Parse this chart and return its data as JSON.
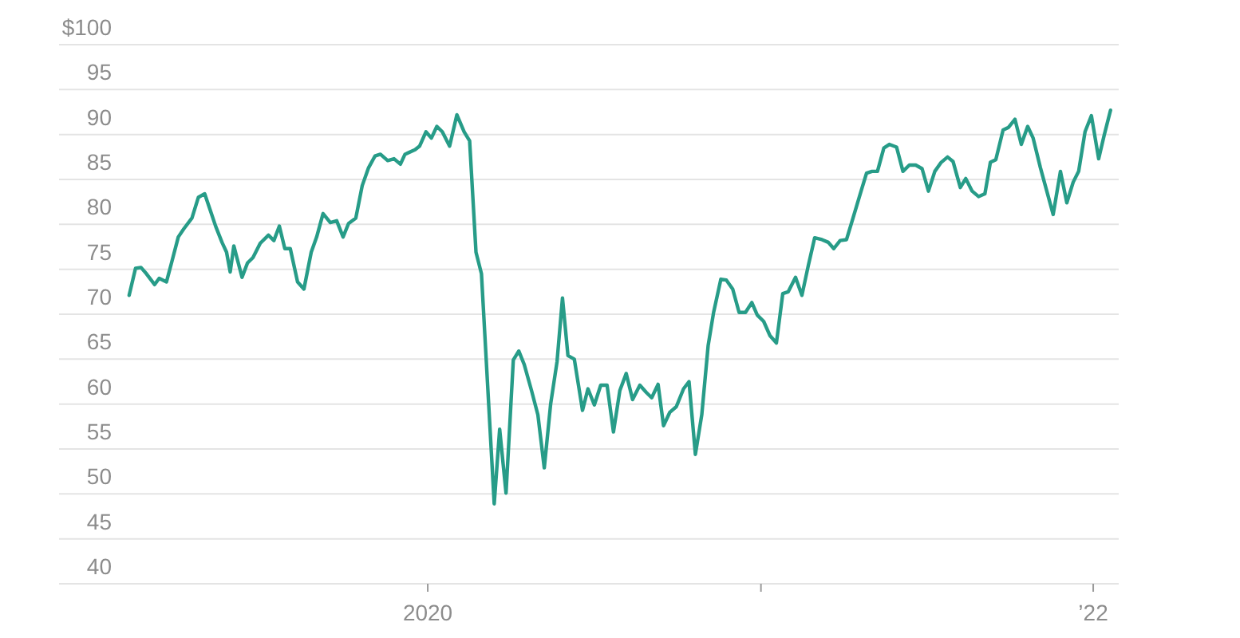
{
  "chart_data": {
    "type": "line",
    "color": "#279c88",
    "grid": "y",
    "marker": "none",
    "line_style": "solid",
    "xlim": [
      "2018-11-22",
      "2022-01-29"
    ],
    "xticks": [
      {
        "value": "2020",
        "label": "2020"
      },
      {
        "value": "2021",
        "label": null
      },
      {
        "value": "2022",
        "label": "’22"
      }
    ],
    "ylim": [
      40,
      100
    ],
    "yticks": [
      40,
      45,
      50,
      55,
      60,
      65,
      70,
      75,
      80,
      85,
      90,
      95,
      {
        "value": 100,
        "label": "$100"
      }
    ],
    "x": [
      "2019-02-07",
      "2019-02-14",
      "2019-02-20",
      "2019-02-26",
      "2019-03-07",
      "2019-03-12",
      "2019-03-20",
      "2019-03-25",
      "2019-04-02",
      "2019-04-08",
      "2019-04-17",
      "2019-04-24",
      "2019-05-01",
      "2019-05-07",
      "2019-05-13",
      "2019-05-20",
      "2019-05-25",
      "2019-05-29",
      "2019-06-02",
      "2019-06-11",
      "2019-06-17",
      "2019-06-23",
      "2019-07-01",
      "2019-07-10",
      "2019-07-16",
      "2019-07-22",
      "2019-07-28",
      "2019-08-03",
      "2019-08-11",
      "2019-08-18",
      "2019-08-26",
      "2019-09-01",
      "2019-09-08",
      "2019-09-16",
      "2019-09-23",
      "2019-09-30",
      "2019-10-06",
      "2019-10-14",
      "2019-10-21",
      "2019-10-28",
      "2019-11-04",
      "2019-11-10",
      "2019-11-18",
      "2019-11-25",
      "2019-12-02",
      "2019-12-07",
      "2019-12-18",
      "2019-12-23",
      "2019-12-30",
      "2020-01-05",
      "2020-01-11",
      "2020-01-17",
      "2020-01-25",
      "2020-02-02",
      "2020-02-10",
      "2020-02-16",
      "2020-02-23",
      "2020-02-29",
      "2020-03-14",
      "2020-03-20",
      "2020-03-27",
      "2020-04-04",
      "2020-04-10",
      "2020-04-16",
      "2020-04-24",
      "2020-05-01",
      "2020-05-08",
      "2020-05-15",
      "2020-05-22",
      "2020-05-28",
      "2020-06-03",
      "2020-06-10",
      "2020-06-19",
      "2020-06-25",
      "2020-07-02",
      "2020-07-09",
      "2020-07-16",
      "2020-07-23",
      "2020-07-30",
      "2020-08-06",
      "2020-08-13",
      "2020-08-21",
      "2020-08-28",
      "2020-09-03",
      "2020-09-10",
      "2020-09-16",
      "2020-09-23",
      "2020-09-30",
      "2020-10-08",
      "2020-10-14",
      "2020-10-21",
      "2020-10-28",
      "2020-11-04",
      "2020-11-10",
      "2020-11-18",
      "2020-11-24",
      "2020-12-01",
      "2020-12-08",
      "2020-12-15",
      "2020-12-22",
      "2020-12-28",
      "2021-01-04",
      "2021-01-11",
      "2021-01-18",
      "2021-01-25",
      "2021-01-31",
      "2021-02-08",
      "2021-02-15",
      "2021-02-22",
      "2021-03-01",
      "2021-03-09",
      "2021-03-16",
      "2021-03-22",
      "2021-03-29",
      "2021-04-05",
      "2021-04-13",
      "2021-04-21",
      "2021-04-27",
      "2021-05-03",
      "2021-05-09",
      "2021-05-16",
      "2021-05-22",
      "2021-05-30",
      "2021-06-06",
      "2021-06-13",
      "2021-06-20",
      "2021-06-27",
      "2021-07-04",
      "2021-07-11",
      "2021-07-18",
      "2021-07-25",
      "2021-07-31",
      "2021-08-08",
      "2021-08-14",
      "2021-08-21",
      "2021-08-28",
      "2021-09-04",
      "2021-09-10",
      "2021-09-16",
      "2021-09-24",
      "2021-09-30",
      "2021-10-07",
      "2021-10-14",
      "2021-10-21",
      "2021-10-27",
      "2021-11-04",
      "2021-11-11",
      "2021-11-18",
      "2021-11-26",
      "2021-12-03",
      "2021-12-10",
      "2021-12-16",
      "2021-12-23",
      "2021-12-30",
      "2022-01-07",
      "2022-01-13",
      "2022-01-20"
    ],
    "values": [
      72.1,
      75.1,
      75.2,
      74.5,
      73.3,
      74.0,
      73.6,
      75.5,
      78.6,
      79.5,
      80.7,
      83.0,
      83.4,
      81.6,
      79.8,
      78.0,
      76.9,
      74.7,
      77.6,
      74.1,
      75.7,
      76.3,
      77.9,
      78.8,
      78.2,
      79.8,
      77.3,
      77.3,
      73.6,
      72.8,
      76.9,
      78.6,
      81.2,
      80.2,
      80.4,
      78.6,
      80.1,
      80.7,
      84.3,
      86.3,
      87.6,
      87.8,
      87.1,
      87.3,
      86.7,
      87.8,
      88.3,
      88.7,
      90.3,
      89.6,
      90.9,
      90.3,
      88.7,
      92.2,
      90.3,
      89.3,
      76.9,
      74.5,
      48.9,
      57.2,
      50.1,
      64.9,
      65.9,
      64.4,
      61.5,
      58.8,
      52.9,
      60.0,
      64.7,
      71.8,
      65.4,
      65.0,
      59.3,
      61.7,
      59.9,
      62.1,
      62.1,
      56.9,
      61.5,
      63.4,
      60.5,
      62.1,
      61.3,
      60.7,
      62.2,
      57.6,
      59.1,
      59.7,
      61.7,
      62.5,
      54.4,
      58.8,
      66.5,
      70.2,
      73.9,
      73.8,
      72.8,
      70.2,
      70.2,
      71.3,
      69.9,
      69.2,
      67.6,
      66.8,
      72.3,
      72.5,
      74.1,
      72.1,
      75.4,
      78.5,
      78.3,
      78.0,
      77.3,
      78.2,
      78.3,
      81.0,
      83.7,
      85.7,
      85.9,
      85.9,
      88.5,
      88.9,
      88.6,
      85.9,
      86.6,
      86.6,
      86.2,
      83.7,
      85.9,
      86.9,
      87.5,
      87.0,
      84.1,
      85.1,
      83.7,
      83.1,
      83.4,
      86.9,
      87.2,
      90.5,
      90.8,
      91.7,
      88.9,
      90.9,
      89.6,
      86.3,
      83.7,
      81.1,
      85.9,
      82.4,
      84.7,
      85.9,
      90.3,
      92.1,
      87.3,
      89.9,
      92.7
    ]
  }
}
